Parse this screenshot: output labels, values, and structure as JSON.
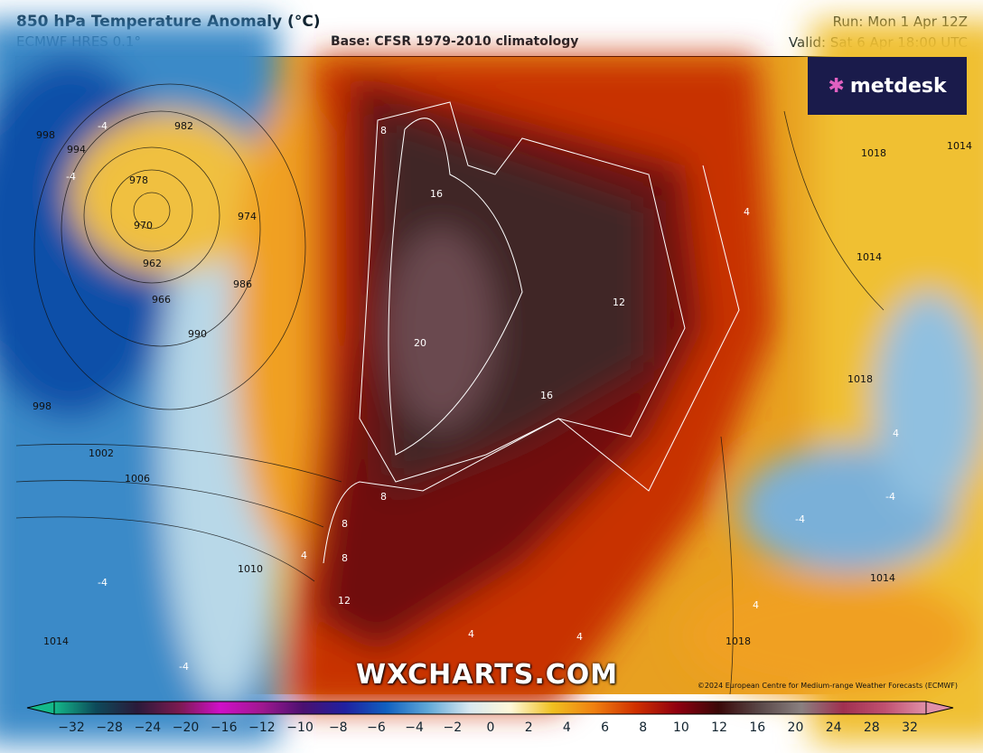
{
  "header": {
    "title": "850 hPa Temperature Anomaly (°C)",
    "model": "ECMWF HRES 0.1°",
    "base": "Base: CFSR 1979-2010 climatology",
    "run": "Run: Mon 1 Apr 12Z",
    "valid": "Valid: Sat 6 Apr 18:00 UTC"
  },
  "logo": {
    "text": "metdesk",
    "icon": "metdesk-star-icon"
  },
  "watermark": "WXCHARTS.COM",
  "copyright": "©2024 European Centre for Medium-range Weather Forecasts (ECMWF)",
  "isobar_labels": [
    "998",
    "994",
    "982",
    "978",
    "974",
    "970",
    "962",
    "966",
    "986",
    "990",
    "998",
    "1002",
    "1006",
    "1010",
    "1014",
    "1018",
    "1014",
    "1018",
    "1014",
    "1018",
    "1014"
  ],
  "anomaly_labels": [
    "-4",
    "-4",
    "8",
    "16",
    "20",
    "12",
    "16",
    "8",
    "8",
    "8",
    "12",
    "4",
    "4",
    "-4",
    "-4",
    "-4",
    "4",
    "4",
    "-4",
    "4",
    "4"
  ],
  "colorbar": {
    "ticks": [
      "−32",
      "−28",
      "−24",
      "−20",
      "−16",
      "−12",
      "−10",
      "−8",
      "−6",
      "−4",
      "−2",
      "0",
      "2",
      "4",
      "6",
      "8",
      "10",
      "12",
      "16",
      "20",
      "24",
      "28",
      "32"
    ],
    "colors": [
      "#14b98a",
      "#0d4a5a",
      "#2a1a3a",
      "#7a1a50",
      "#d010c8",
      "#a01890",
      "#4a1070",
      "#2020a0",
      "#1060c0",
      "#60a8d8",
      "#d8e8f0",
      "#fff8d8",
      "#f0c020",
      "#f08010",
      "#d03000",
      "#900010",
      "#3a0808",
      "#5a4848",
      "#8a8080",
      "#a03050",
      "#c05070",
      "#e090a8"
    ]
  }
}
